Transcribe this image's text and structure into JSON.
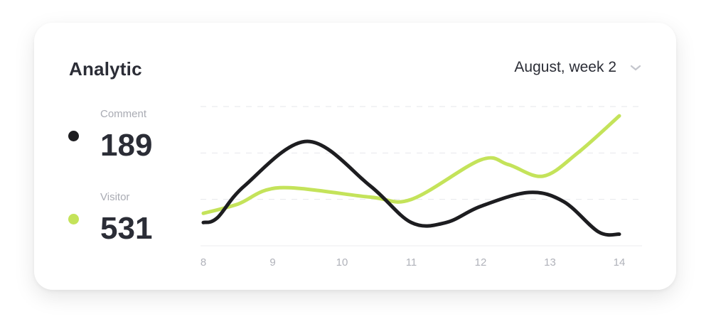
{
  "card": {
    "title": "Analytic",
    "period": {
      "label": "August, week 2",
      "icon": "chevron-down-icon"
    }
  },
  "stats": [
    {
      "label": "Comment",
      "value": "189",
      "color": "#1d1d20"
    },
    {
      "label": "Visitor",
      "value": "531",
      "color": "#c4e35a"
    }
  ],
  "chart_data": {
    "type": "line",
    "x": [
      8,
      9,
      10,
      11,
      12,
      13,
      14
    ],
    "xticks": [
      "8",
      "9",
      "10",
      "11",
      "12",
      "13",
      "14"
    ],
    "series": [
      {
        "name": "Comment",
        "color": "#1d1d20",
        "points": [
          [
            8,
            1.0
          ],
          [
            8.2,
            1.2
          ],
          [
            8.6,
            2.6
          ],
          [
            9.5,
            4.5
          ],
          [
            10.4,
            2.6
          ],
          [
            11,
            1.0
          ],
          [
            11.5,
            1.0
          ],
          [
            12,
            1.7
          ],
          [
            12.7,
            2.3
          ],
          [
            13.2,
            1.9
          ],
          [
            13.7,
            0.6
          ],
          [
            14,
            0.5
          ]
        ]
      },
      {
        "name": "Visitor",
        "color": "#c4e35a",
        "points": [
          [
            8,
            1.4
          ],
          [
            8.5,
            1.8
          ],
          [
            9.1,
            2.5
          ],
          [
            10.4,
            2.1
          ],
          [
            11,
            2.0
          ],
          [
            12,
            3.7
          ],
          [
            12.4,
            3.5
          ],
          [
            12.9,
            3.0
          ],
          [
            13.4,
            4.0
          ],
          [
            14,
            5.6
          ]
        ]
      }
    ],
    "grid": true
  }
}
